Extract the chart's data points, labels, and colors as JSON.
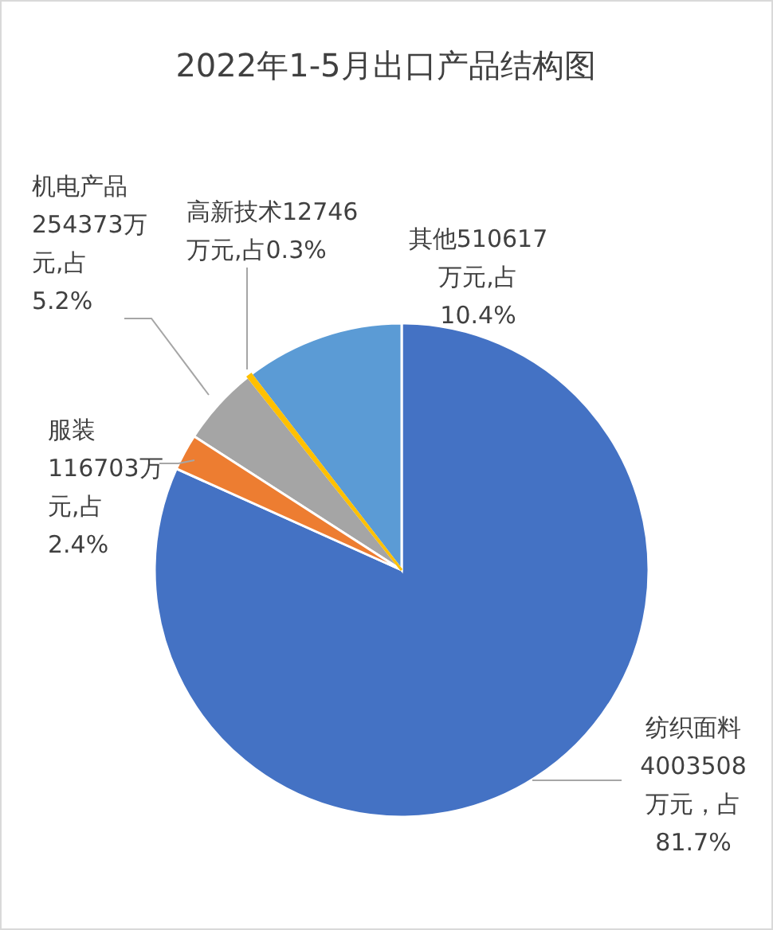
{
  "chart_data": {
    "type": "pie",
    "title": "2022年1-5月出口产品结构图",
    "categories": [
      "纺织面料",
      "服装",
      "机电产品",
      "高新技术",
      "其他"
    ],
    "values": [
      4003508,
      116703,
      254373,
      12746,
      510617
    ],
    "colors": [
      "#4472c4",
      "#ed7d31",
      "#a5a5a5",
      "#ffc000",
      "#5b9bd5"
    ],
    "value_labels": [
      "4003508万元，占81.7%",
      "116703万元,占2.4%",
      "254373万元,占5.2%",
      "12746万元,占0.3%",
      "510617万元,占10.4%"
    ]
  }
}
